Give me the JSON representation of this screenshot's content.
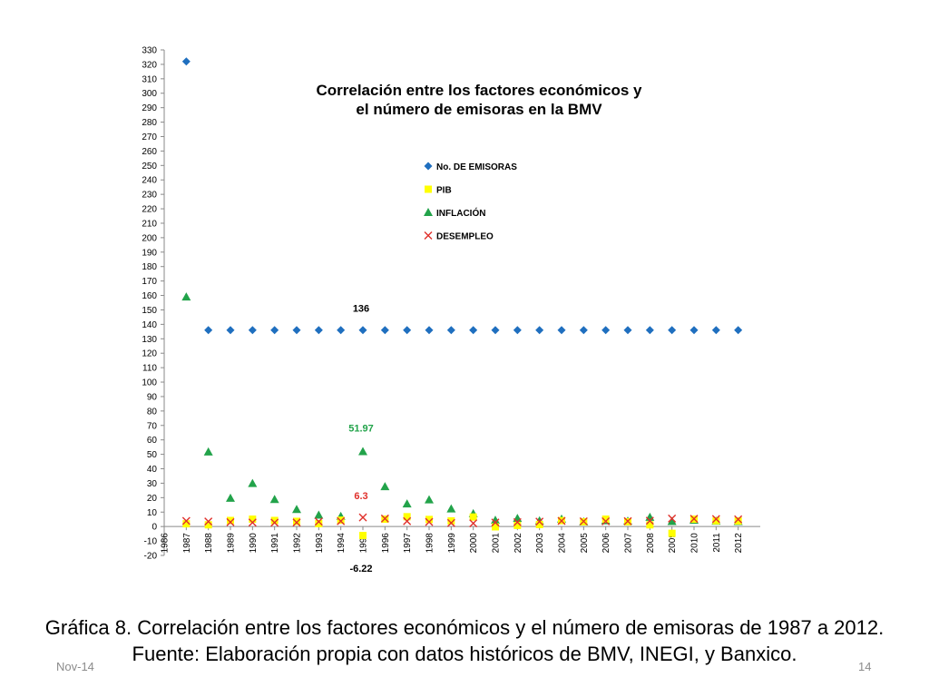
{
  "colors": {
    "emisoras": "#1f6fbf",
    "pib": "#ffff00",
    "inflacion": "#22a34a",
    "desempleo": "#e0302b",
    "axis": "#8a8a8a"
  },
  "chart_data": {
    "type": "scatter",
    "title_line1": "Correlación entre los factores económicos y",
    "title_line2": "el número de emisoras en la BMV",
    "x": [
      1986,
      1987,
      1988,
      1989,
      1990,
      1991,
      1992,
      1993,
      1994,
      1995,
      1996,
      1997,
      1998,
      1999,
      2000,
      2001,
      2002,
      2003,
      2004,
      2005,
      2006,
      2007,
      2008,
      2009,
      2010,
      2011,
      2012
    ],
    "xlabel": "",
    "ylabel": "",
    "ylim": [
      -20,
      330
    ],
    "ytick_step": 10,
    "grid": false,
    "legend_position": "top-center",
    "series": [
      {
        "name": "No. DE EMISORAS",
        "marker": "diamond",
        "x": [
          1987,
          1988,
          1989,
          1990,
          1991,
          1992,
          1993,
          1994,
          1995,
          1996,
          1997,
          1998,
          1999,
          2000,
          2001,
          2002,
          2003,
          2004,
          2005,
          2006,
          2007,
          2008,
          2009,
          2010,
          2011,
          2012
        ],
        "values": [
          322,
          136,
          136,
          136,
          136,
          136,
          136,
          136,
          136,
          136,
          136,
          136,
          136,
          136,
          136,
          136,
          136,
          136,
          136,
          136,
          136,
          136,
          136,
          136,
          136,
          136
        ]
      },
      {
        "name": "PIB",
        "marker": "square",
        "x": [
          1987,
          1988,
          1989,
          1990,
          1991,
          1992,
          1993,
          1994,
          1995,
          1996,
          1997,
          1998,
          1999,
          2000,
          2001,
          2002,
          2003,
          2004,
          2005,
          2006,
          2007,
          2008,
          2009,
          2010,
          2011,
          2012
        ],
        "values": [
          1.9,
          1.2,
          4.2,
          5.1,
          4.2,
          3.6,
          2,
          4.4,
          -6.22,
          5.1,
          6.8,
          4.9,
          3.9,
          6.6,
          -0.2,
          0.8,
          1.4,
          4.1,
          3.3,
          5.1,
          3.3,
          1.2,
          -4.7,
          5.1,
          4,
          3.9
        ]
      },
      {
        "name": "INFLACIÓN",
        "marker": "triangle",
        "x": [
          1987,
          1988,
          1989,
          1990,
          1991,
          1992,
          1993,
          1994,
          1995,
          1996,
          1997,
          1998,
          1999,
          2000,
          2001,
          2002,
          2003,
          2004,
          2005,
          2006,
          2007,
          2008,
          2009,
          2010,
          2011,
          2012
        ],
        "values": [
          159,
          51.7,
          19.7,
          29.9,
          18.8,
          11.9,
          8,
          7.1,
          51.97,
          27.7,
          15.7,
          18.6,
          12.3,
          9,
          4.4,
          5.7,
          4,
          5.2,
          3.3,
          4.1,
          3.8,
          6.5,
          3.6,
          4.4,
          3.8,
          3.6
        ]
      },
      {
        "name": "DESEMPLEO",
        "marker": "x",
        "x": [
          1987,
          1988,
          1989,
          1990,
          1991,
          1992,
          1993,
          1994,
          1995,
          1996,
          1997,
          1998,
          1999,
          2000,
          2001,
          2002,
          2003,
          2004,
          2005,
          2006,
          2007,
          2008,
          2009,
          2010,
          2011,
          2012
        ],
        "values": [
          3.9,
          3.5,
          3,
          2.8,
          2.7,
          2.8,
          3.4,
          3.7,
          6.3,
          5.5,
          3.7,
          3.2,
          2.5,
          2.2,
          2.8,
          3,
          3.4,
          3.9,
          3.6,
          3.6,
          3.7,
          4,
          5.5,
          5.4,
          5.2,
          5
        ]
      }
    ],
    "annotations": [
      {
        "text": "136",
        "x": 1995,
        "y": 136,
        "series": "emisoras"
      },
      {
        "text": "51.97",
        "x": 1995,
        "y": 51.97,
        "series": "inflacion"
      },
      {
        "text": "6.3",
        "x": 1995,
        "y": 6.3,
        "series": "desempleo"
      },
      {
        "text": "-6.22",
        "x": 1995,
        "y": -6.22,
        "series": "pib"
      }
    ]
  },
  "caption": {
    "line1": "Gráfica 8. Correlación entre los factores económicos y el número de emisoras de 1987 a 2012.",
    "line2": "Fuente: Elaboración propia con datos históricos de BMV, INEGI, y Banxico."
  },
  "footer": {
    "date": "Nov-14",
    "page": "14"
  }
}
